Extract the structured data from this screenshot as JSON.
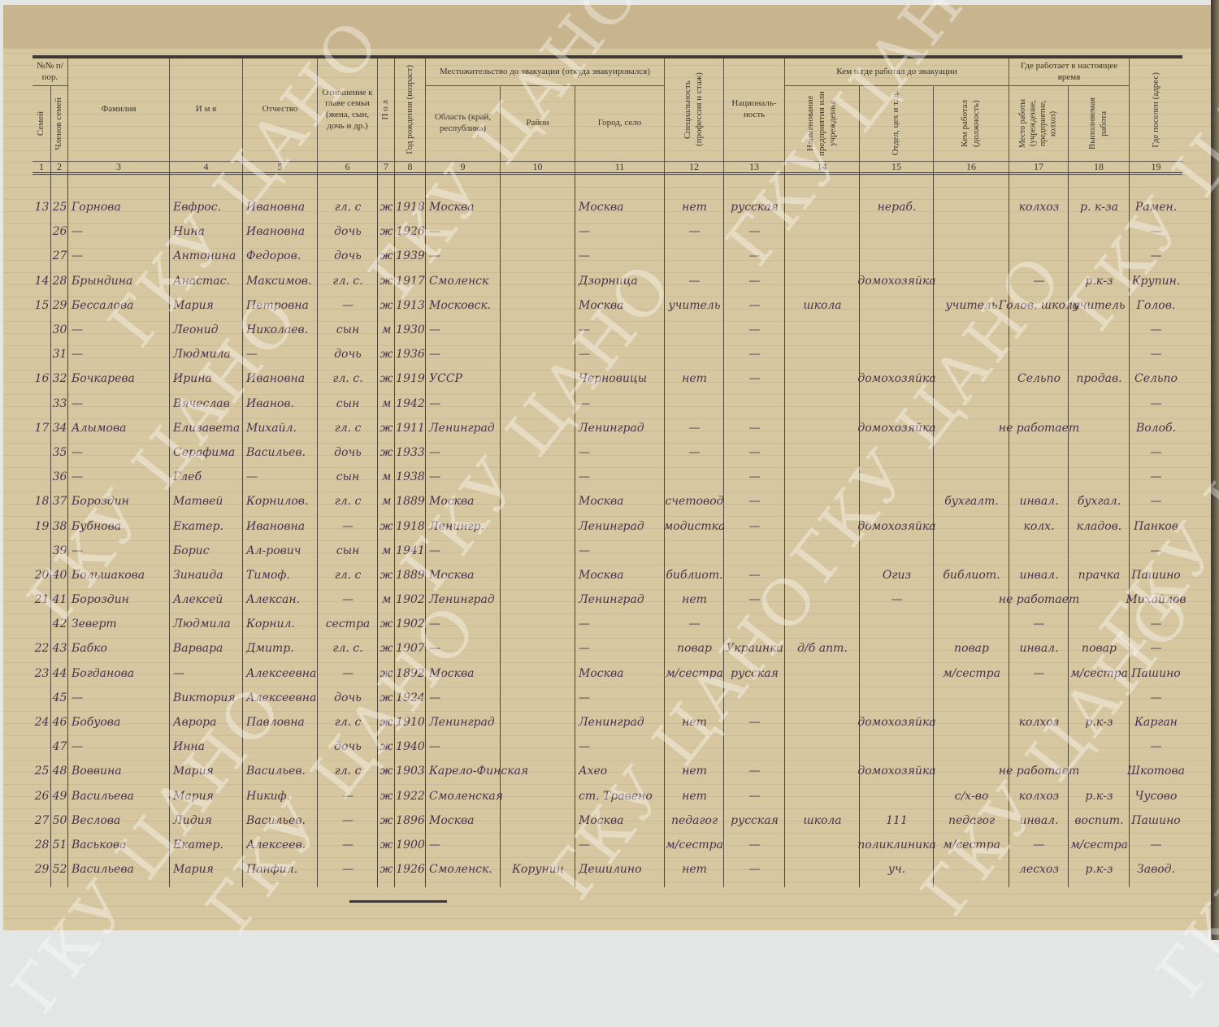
{
  "watermark": "ГКУ ЦАНО",
  "header": {
    "group_num": "№№ п/пор.",
    "group_residence": "Местожительство до эвакуации (откуда эвакуировался)",
    "group_work_before": "Кем и где работал до эвакуации",
    "group_work_now": "Где работает в настоящее время",
    "columns": [
      "Семей",
      "Членов семей",
      "Фамилия",
      "И м я",
      "Отчество",
      "Отношение к главе семьи (жена, сын, дочь и др.)",
      "П о л",
      "Год рождения (возраст)",
      "Область (край, республика)",
      "Район",
      "Город, село",
      "Специальность (профессия и стаж)",
      "Националь-ность",
      "Наименование предприятия или учреждения",
      "Отдел, цех и т. д.",
      "Кем работал (должность)",
      "Место работы (учреждение, предприятие, колхоз)",
      "Выполняемая работа",
      "Где поселен (адрес)"
    ],
    "numbers": [
      "1",
      "2",
      "3",
      "4",
      "5",
      "6",
      "7",
      "8",
      "9",
      "10",
      "11",
      "12",
      "13",
      "14",
      "15",
      "16",
      "17",
      "18",
      "19"
    ]
  },
  "rows": [
    [
      "13",
      "25",
      "Горнова",
      "Евфрос.",
      "Ивановна",
      "гл. с",
      "ж",
      "1918",
      "Москва",
      "",
      "Москва",
      "нет",
      "русская",
      "",
      "нераб.",
      "",
      "колхоз",
      "р. к-за",
      "Рамен."
    ],
    [
      "",
      "26",
      "—",
      "Нина",
      "Ивановна",
      "дочь",
      "ж",
      "1926",
      "—",
      "",
      "—",
      "—",
      "—",
      "",
      "",
      "",
      "",
      "",
      "—"
    ],
    [
      "",
      "27",
      "—",
      "Антонина",
      "Федоров.",
      "дочь",
      "ж",
      "1939",
      "—",
      "",
      "—",
      "",
      "—",
      "",
      "",
      "",
      "",
      "",
      "—"
    ],
    [
      "14",
      "28",
      "Брындина",
      "Анастас.",
      "Максимов.",
      "гл. с.",
      "ж",
      "1917",
      "Смоленск",
      "",
      "Дзорница",
      "—",
      "—",
      "",
      "домохозяйка",
      "",
      "—",
      "р.к-з",
      "Крупин."
    ],
    [
      "15",
      "29",
      "Бессалова",
      "Мария",
      "Петровна",
      "—",
      "ж",
      "1913",
      "Московск.",
      "",
      "Москва",
      "учитель",
      "—",
      "школа",
      "",
      "учитель",
      "Голов. школа",
      "учитель",
      "Голов."
    ],
    [
      "",
      "30",
      "—",
      "Леонид",
      "Николаев.",
      "сын",
      "м",
      "1930",
      "—",
      "",
      "—",
      "",
      "—",
      "",
      "",
      "",
      "",
      "",
      "—"
    ],
    [
      "",
      "31",
      "—",
      "Людмила",
      "—",
      "дочь",
      "ж",
      "1936",
      "—",
      "",
      "—",
      "",
      "—",
      "",
      "",
      "",
      "",
      "",
      "—"
    ],
    [
      "16",
      "32",
      "Бочкарева",
      "Ирина",
      "Ивановна",
      "гл. с.",
      "ж",
      "1919",
      "УССР",
      "",
      "Черновицы",
      "нет",
      "—",
      "",
      "домохозяйка",
      "",
      "Сельпо",
      "продав.",
      "Сельпо"
    ],
    [
      "",
      "33",
      "—",
      "Вячеслав",
      "Иванов.",
      "сын",
      "м",
      "1942",
      "—",
      "",
      "—",
      "",
      "",
      "",
      "",
      "",
      "",
      "",
      "—"
    ],
    [
      "17",
      "34",
      "Алымова",
      "Елизавета",
      "Михайл.",
      "гл. с",
      "ж",
      "1911",
      "Ленинград",
      "",
      "Ленинград",
      "—",
      "—",
      "",
      "домохозяйка",
      "",
      "не работает",
      "",
      "Волоб."
    ],
    [
      "",
      "35",
      "—",
      "Серафима",
      "Васильев.",
      "дочь",
      "ж",
      "1933",
      "—",
      "",
      "—",
      "—",
      "—",
      "",
      "",
      "",
      "",
      "",
      "—"
    ],
    [
      "",
      "36",
      "—",
      "Глеб",
      "—",
      "сын",
      "м",
      "1938",
      "—",
      "",
      "—",
      "",
      "—",
      "",
      "",
      "",
      "",
      "",
      "—"
    ],
    [
      "18",
      "37",
      "Бороздин",
      "Матвей",
      "Корнилов.",
      "гл. с",
      "м",
      "1889",
      "Москва",
      "",
      "Москва",
      "счетовод",
      "—",
      "",
      "",
      "бухгалт.",
      "инвал.",
      "бухгал.",
      "—"
    ],
    [
      "19",
      "38",
      "Бубнова",
      "Екатер.",
      "Ивановна",
      "—",
      "ж",
      "1918",
      "Ленингр.",
      "",
      "Ленинград",
      "модистка",
      "—",
      "",
      "домохозяйка",
      "",
      "колх.",
      "кладов.",
      "Панков"
    ],
    [
      "",
      "39",
      "—",
      "Борис",
      "Ал-рович",
      "сын",
      "м",
      "1941",
      "—",
      "",
      "—",
      "",
      "",
      "",
      "",
      "",
      "",
      "",
      "—"
    ],
    [
      "20",
      "40",
      "Большакова",
      "Зинаида",
      "Тимоф.",
      "гл. с",
      "ж",
      "1889",
      "Москва",
      "",
      "Москва",
      "библиот.",
      "—",
      "",
      "Огиз",
      "библиот.",
      "инвал.",
      "прачка",
      "Пашино"
    ],
    [
      "21",
      "41",
      "Бороздин",
      "Алексей",
      "Алексан.",
      "—",
      "м",
      "1902",
      "Ленинград",
      "",
      "Ленинград",
      "нет",
      "—",
      "",
      "—",
      "",
      "не работает",
      "",
      "Михайлов"
    ],
    [
      "",
      "42",
      "Зеверт",
      "Людмила",
      "Корнил.",
      "сестра",
      "ж",
      "1902",
      "—",
      "",
      "—",
      "—",
      "",
      "",
      "",
      "",
      "—",
      "",
      "—"
    ],
    [
      "22",
      "43",
      "Бабко",
      "Варвара",
      "Дмитр.",
      "гл. с.",
      "ж",
      "1907",
      "—",
      "",
      "—",
      "повар",
      "Украинка",
      "д/б апт.",
      "",
      "повар",
      "инвал.",
      "повар",
      "—"
    ],
    [
      "23",
      "44",
      "Богданова",
      "—",
      "Алексеевна",
      "—",
      "ж",
      "1892",
      "Москва",
      "",
      "Москва",
      "м/сестра",
      "русская",
      "",
      "",
      "м/сестра",
      "—",
      "м/сестра",
      "Пашино"
    ],
    [
      "",
      "45",
      "—",
      "Виктория",
      "Алексеевна",
      "дочь",
      "ж",
      "1924",
      "—",
      "",
      "—",
      "",
      "",
      "",
      "",
      "",
      "",
      "",
      "—"
    ],
    [
      "24",
      "46",
      "Бобуова",
      "Аврора",
      "Павловна",
      "гл. с",
      "ж",
      "1910",
      "Ленинград",
      "",
      "Ленинград",
      "нет",
      "—",
      "",
      "домохозяйка",
      "",
      "колхоз",
      "р.к-з",
      "Карган"
    ],
    [
      "",
      "47",
      "—",
      "Инна",
      "",
      "дочь",
      "ж",
      "1940",
      "—",
      "",
      "—",
      "",
      "",
      "",
      "",
      "",
      "",
      "",
      "—"
    ],
    [
      "25",
      "48",
      "Воввина",
      "Мария",
      "Васильев.",
      "гл. с",
      "ж",
      "1903",
      "Карело-Финская",
      "",
      "Ахео",
      "нет",
      "—",
      "",
      "домохозяйка",
      "",
      "не работает",
      "",
      "Шкотова"
    ],
    [
      "26",
      "49",
      "Васильева",
      "Мария",
      "Никиф.",
      "—",
      "ж",
      "1922",
      "Смоленская",
      "",
      "ст. Травено",
      "нет",
      "—",
      "",
      "",
      "с/х-во",
      "колхоз",
      "р.к-з",
      "Чусово"
    ],
    [
      "27",
      "50",
      "Веслова",
      "Лидия",
      "Васильев.",
      "—",
      "ж",
      "1896",
      "Москва",
      "",
      "Москва",
      "педагог",
      "русская",
      "школа",
      "111",
      "педагог",
      "инвал.",
      "воспит.",
      "Пашино"
    ],
    [
      "28",
      "51",
      "Васькова",
      "Екатер.",
      "Алексеев.",
      "—",
      "ж",
      "1900",
      "—",
      "",
      "—",
      "м/сестра",
      "—",
      "",
      "поликлиника",
      "м/сестра",
      "—",
      "м/сестра",
      "—"
    ],
    [
      "29",
      "52",
      "Васильева",
      "Мария",
      "Панфил.",
      "—",
      "ж",
      "1926",
      "Смоленск.",
      "Корунин",
      "Дешилино",
      "нет",
      "—",
      "",
      "уч.",
      "",
      "лесхоз",
      "р.к-з",
      "Завод."
    ]
  ],
  "colors": {
    "paper": "#d7c7a0",
    "ink": "#4a3350",
    "print": "#3b352c"
  }
}
